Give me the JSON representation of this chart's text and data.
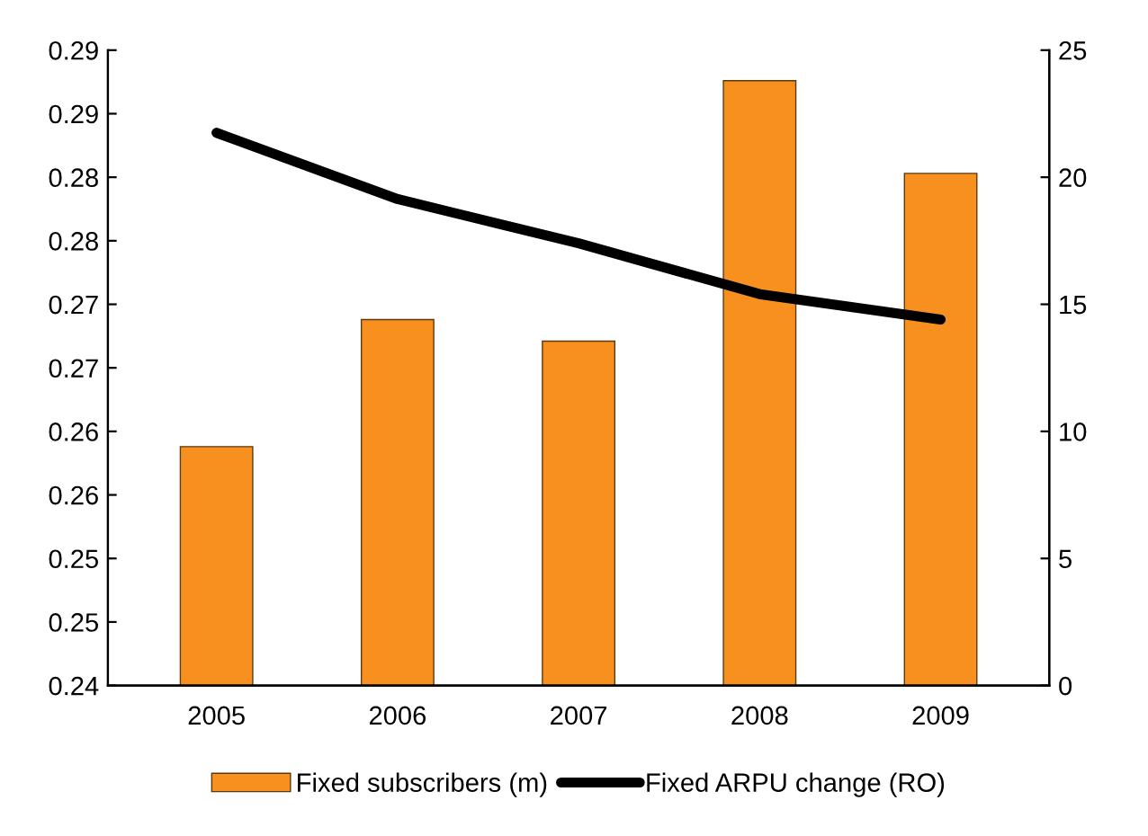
{
  "chart_data": {
    "type": "bar",
    "categories": [
      "2005",
      "2006",
      "2007",
      "2008",
      "2009"
    ],
    "series": [
      {
        "name": "Fixed subscribers (m)",
        "color": "#f7901e",
        "values": [
          0.2588,
          0.2688,
          0.2671,
          0.2876,
          0.2803
        ]
      },
      {
        "name": "Fixed ARPU change (RO)",
        "color": "#000000",
        "type": "line",
        "axis": "y2",
        "values": [
          21.75,
          19.14,
          17.4,
          15.4,
          14.4
        ]
      }
    ],
    "ylim": [
      0.24,
      0.29
    ],
    "yticks": [
      {
        "value": 0.24,
        "label": "0.24"
      },
      {
        "value": 0.245,
        "label": "0.25"
      },
      {
        "value": 0.25,
        "label": "0.25"
      },
      {
        "value": 0.255,
        "label": "0.26"
      },
      {
        "value": 0.26,
        "label": "0.26"
      },
      {
        "value": 0.265,
        "label": "0.27"
      },
      {
        "value": 0.27,
        "label": "0.27"
      },
      {
        "value": 0.275,
        "label": "0.28"
      },
      {
        "value": 0.28,
        "label": "0.28"
      },
      {
        "value": 0.285,
        "label": "0.29"
      },
      {
        "value": 0.29,
        "label": "0.29"
      }
    ],
    "y2lim": [
      0,
      25
    ],
    "y2ticks": [
      0,
      5,
      10,
      15,
      20,
      25
    ],
    "legend": "bottom",
    "grid": false,
    "marker": "none",
    "line_style": "solid"
  }
}
